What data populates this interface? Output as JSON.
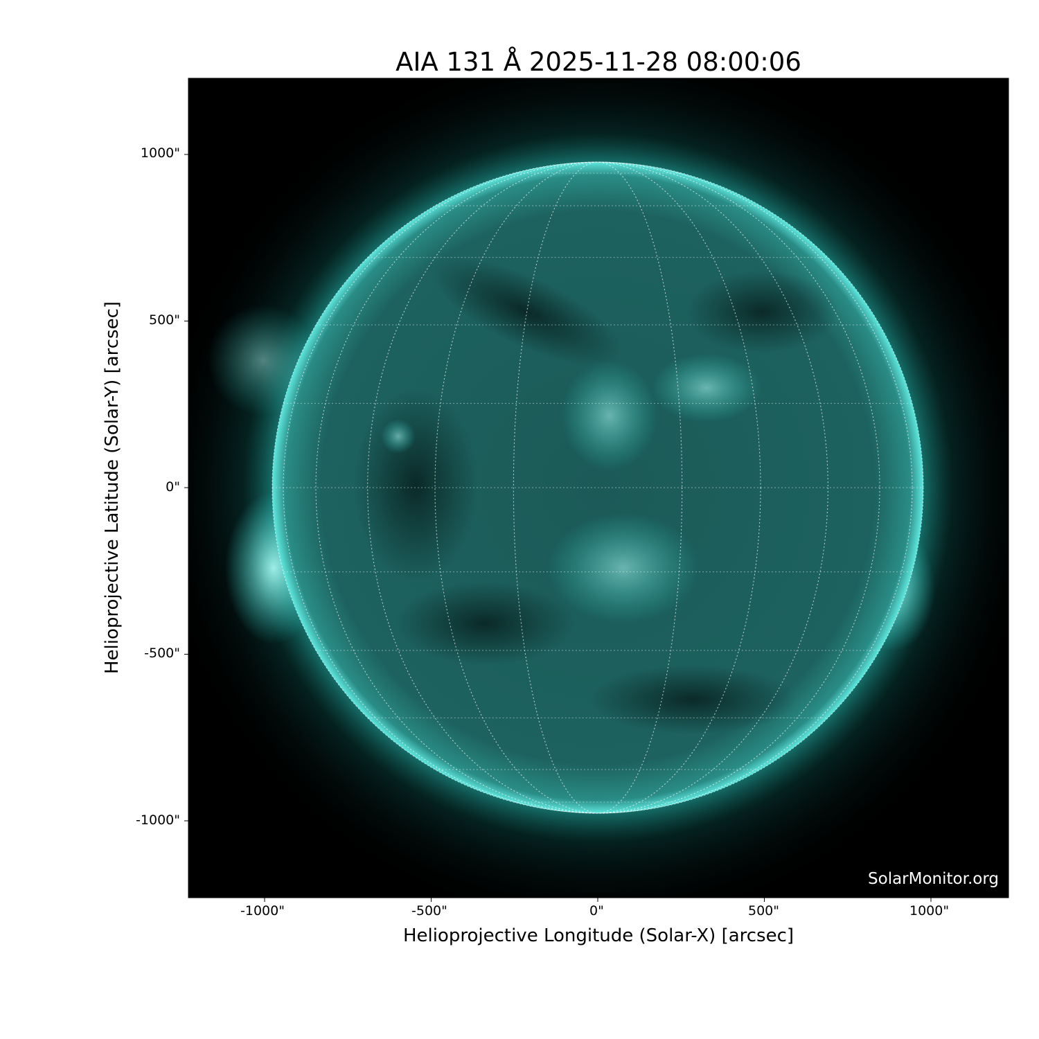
{
  "title": "AIA 131 Å 2025-11-28 08:00:06",
  "instrument": "AIA",
  "wavelength": "131 Å",
  "timestamp": "2025-11-28 08:00:06",
  "axes": {
    "xlabel": "Helioprojective Longitude (Solar-X) [arcsec]",
    "ylabel": "Helioprojective Latitude (Solar-Y) [arcsec]",
    "xticks": [
      "-1000\"",
      "-500\"",
      "0\"",
      "500\"",
      "1000\""
    ],
    "yticks": [
      "1000\"",
      "500\"",
      "0\"",
      "-500\"",
      "-1000\""
    ],
    "xlim": [
      -1230,
      1230
    ],
    "ylim": [
      -1230,
      1230
    ]
  },
  "colormap_color": "#2ee6dc",
  "grid": "heliographic lat/lon every 15°, dotted white",
  "watermark": "SolarMonitor.org"
}
